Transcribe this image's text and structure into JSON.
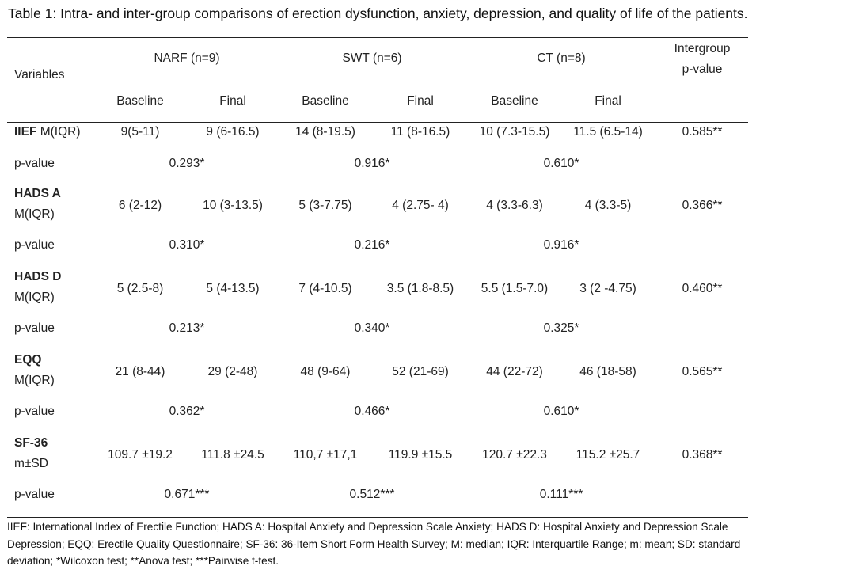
{
  "caption": "Table 1: Intra- and inter-group comparisons of erection dysfunction, anxiety, depression, and quality of life of the patients.",
  "header": {
    "variables": "Variables",
    "groups": [
      "NARF (n=9)",
      "SWT (n=6)",
      "CT (n=8)"
    ],
    "intergroup": [
      "Intergroup",
      "p-value"
    ],
    "sub": [
      "Baseline",
      "Final",
      "Baseline",
      "Final",
      "Baseline",
      "Final"
    ]
  },
  "rows": [
    {
      "name_bold": "IIEF",
      "name_rest": " M(IQR)",
      "name_line2": "",
      "values": [
        "9(5-11)",
        "9 (6-16.5)",
        "14 (8-19.5)",
        "11 (8-16.5)",
        "10 (7.3-15.5)",
        "11.5 (6.5-14)"
      ],
      "intergroup": "0.585**",
      "p_label": "p-value",
      "p_values": [
        "0.293*",
        "0.916*",
        "0.610*"
      ]
    },
    {
      "name_bold": "HADS A",
      "name_rest": "",
      "name_line2": "M(IQR)",
      "values": [
        "6 (2-12)",
        "10 (3-13.5)",
        "5 (3-7.75)",
        "4 (2.75- 4)",
        "4 (3.3-6.3)",
        "4 (3.3-5)"
      ],
      "intergroup": "0.366**",
      "p_label": "p-value",
      "p_values": [
        "0.310*",
        "0.216*",
        "0.916*"
      ]
    },
    {
      "name_bold": "HADS D",
      "name_rest": "",
      "name_line2": "M(IQR)",
      "values": [
        "5 (2.5-8)",
        "5 (4-13.5)",
        "7 (4-10.5)",
        "3.5 (1.8-8.5)",
        "5.5 (1.5-7.0)",
        "3 (2 -4.75)"
      ],
      "intergroup": "0.460**",
      "p_label": "p-value",
      "p_values": [
        "0.213*",
        "0.340*",
        "0.325*"
      ]
    },
    {
      "name_bold": "EQQ",
      "name_rest": "",
      "name_line2": "M(IQR)",
      "values": [
        "21 (8-44)",
        "29 (2-48)",
        "48 (9-64)",
        "52 (21-69)",
        "44 (22-72)",
        "46 (18-58)"
      ],
      "intergroup": "0.565**",
      "p_label": "p-value",
      "p_values": [
        "0.362*",
        "0.466*",
        "0.610*"
      ]
    },
    {
      "name_bold": "SF-36",
      "name_rest": "",
      "name_line2": "m±SD",
      "values": [
        "109.7 ±19.2",
        "111.8 ±24.5",
        "110,7 ±17,1",
        "119.9 ±15.5",
        "120.7 ±22.3",
        "115.2 ±25.7"
      ],
      "intergroup": "0.368**",
      "p_label": "p-value",
      "p_values": [
        "0.671***",
        "0.512***",
        "0.111***"
      ]
    }
  ],
  "footnote": "IIEF: International Index of Erectile Function; HADS A: Hospital Anxiety and Depression Scale Anxiety; HADS D: Hospital Anxiety and Depression Scale Depression; EQQ: Erectile Quality Questionnaire; SF-36: 36-Item Short Form Health Survey; M: median; IQR: Interquartile Range; m: mean; SD: standard deviation; *Wilcoxon test; **Anova test; ***Pairwise t-test."
}
